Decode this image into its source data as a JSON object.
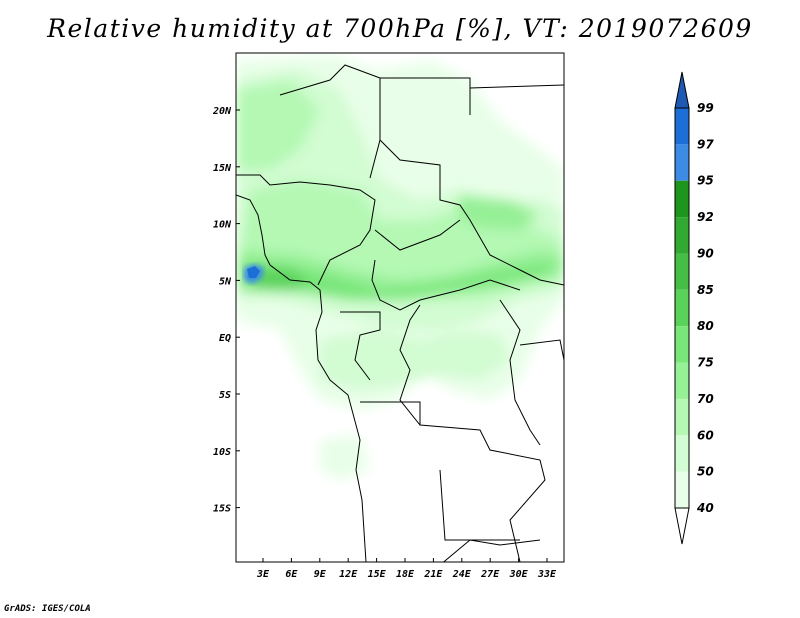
{
  "title": "Relative humidity at 700hPa [%], VT: 2019072609",
  "footer": "GrADS: IGES/COLA",
  "map": {
    "lat_ticks": [
      "20N",
      "15N",
      "10N",
      "5N",
      "EQ",
      "5S",
      "10S",
      "15S"
    ],
    "lon_ticks": [
      "3E",
      "6E",
      "9E",
      "12E",
      "15E",
      "18E",
      "21E",
      "24E",
      "27E",
      "30E",
      "33E"
    ]
  },
  "colorbar": {
    "labels": [
      "99",
      "97",
      "95",
      "92",
      "90",
      "85",
      "80",
      "75",
      "70",
      "60",
      "50",
      "40"
    ],
    "colors": [
      "#1e6ed8",
      "#3c8ce6",
      "#1e961e",
      "#32aa32",
      "#46be46",
      "#5ad25a",
      "#78e678",
      "#96f096",
      "#b4f8b4",
      "#d2fcd2",
      "#e8fee8",
      "#ffffff"
    ],
    "top_arrow_color": "#1e5ab4"
  }
}
